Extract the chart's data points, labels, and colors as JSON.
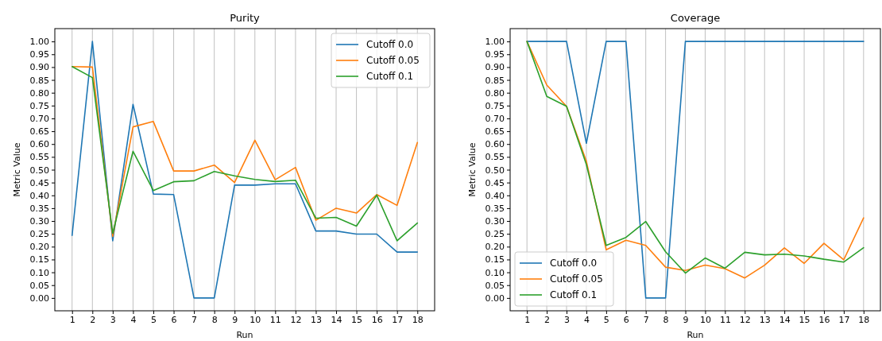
{
  "chart_data": [
    {
      "type": "line",
      "title": "Purity",
      "xlabel": "Run",
      "ylabel": "Metric Value",
      "x": [
        1,
        2,
        3,
        4,
        5,
        6,
        7,
        8,
        9,
        10,
        11,
        12,
        13,
        14,
        15,
        16,
        17,
        18
      ],
      "series": [
        {
          "name": "Cutoff 0.0",
          "color": "#1f77b4",
          "values": [
            0.244,
            1.0,
            0.223,
            0.755,
            0.405,
            0.403,
            0,
            0,
            0.44,
            0.44,
            0.445,
            0.445,
            0.261,
            0.261,
            0.249,
            0.249,
            0.179,
            0.179
          ]
        },
        {
          "name": "Cutoff 0.05",
          "color": "#ff7f0e",
          "values": [
            0.902,
            0.9,
            0.24,
            0.667,
            0.688,
            0.495,
            0.495,
            0.518,
            0.45,
            0.615,
            0.461,
            0.509,
            0.303,
            0.35,
            0.331,
            0.403,
            0.361,
            0.606
          ]
        },
        {
          "name": "Cutoff 0.1",
          "color": "#2ca02c",
          "values": [
            0.902,
            0.859,
            0.252,
            0.572,
            0.419,
            0.453,
            0.457,
            0.493,
            0.476,
            0.462,
            0.454,
            0.459,
            0.311,
            0.314,
            0.28,
            0.401,
            0.223,
            0.292
          ]
        }
      ],
      "xlim": [
        0.15,
        18.85
      ],
      "xticks": [
        1,
        2,
        3,
        4,
        5,
        6,
        7,
        8,
        9,
        10,
        11,
        12,
        13,
        14,
        15,
        16,
        17,
        18
      ],
      "ylim": [
        -0.05,
        1.05
      ],
      "yticks": [
        {
          "value": 0,
          "label": "0.00"
        },
        {
          "value": 0.05,
          "label": "0.05"
        },
        {
          "value": 0.1,
          "label": "0.10"
        },
        {
          "value": 0.15,
          "label": "0.15"
        },
        {
          "value": 0.2,
          "label": "0.20"
        },
        {
          "value": 0.25,
          "label": "0.25"
        },
        {
          "value": 0.3,
          "label": "0.30"
        },
        {
          "value": 0.35,
          "label": "0.35"
        },
        {
          "value": 0.4,
          "label": "0.40"
        },
        {
          "value": 0.45,
          "label": "0.45"
        },
        {
          "value": 0.5,
          "label": "0.50"
        },
        {
          "value": 0.55,
          "label": "0.55"
        },
        {
          "value": 0.6,
          "label": "0.60"
        },
        {
          "value": 0.65,
          "label": "0.65"
        },
        {
          "value": 0.7,
          "label": "0.70"
        },
        {
          "value": 0.75,
          "label": "0.75"
        },
        {
          "value": 0.8,
          "label": "0.80"
        },
        {
          "value": 0.85,
          "label": "0.85"
        },
        {
          "value": 0.9,
          "label": "0.90"
        },
        {
          "value": 0.95,
          "label": "0.95"
        },
        {
          "value": 1,
          "label": "1.00"
        }
      ],
      "grid": "x",
      "legend": "top right"
    },
    {
      "type": "line",
      "title": "Coverage",
      "xlabel": "Run",
      "ylabel": "Metric Value",
      "x": [
        1,
        2,
        3,
        4,
        5,
        6,
        7,
        8,
        9,
        10,
        11,
        12,
        13,
        14,
        15,
        16,
        17,
        18
      ],
      "series": [
        {
          "name": "Cutoff 0.0",
          "color": "#1f77b4",
          "values": [
            1,
            1,
            1,
            0.603,
            1,
            1,
            0,
            0,
            1,
            1,
            1,
            1,
            1,
            1,
            1,
            1,
            1,
            1
          ]
        },
        {
          "name": "Cutoff 0.05",
          "color": "#ff7f0e",
          "values": [
            1,
            0.83,
            0.747,
            0.533,
            0.188,
            0.225,
            0.205,
            0.12,
            0.107,
            0.128,
            0.114,
            0.078,
            0.128,
            0.195,
            0.135,
            0.213,
            0.149,
            0.312
          ]
        },
        {
          "name": "Cutoff 0.1",
          "color": "#2ca02c",
          "values": [
            1,
            0.786,
            0.747,
            0.52,
            0.205,
            0.236,
            0.298,
            0.18,
            0.097,
            0.156,
            0.116,
            0.178,
            0.168,
            0.171,
            0.164,
            0.151,
            0.14,
            0.196
          ]
        }
      ],
      "xlim": [
        0.15,
        18.85
      ],
      "xticks": [
        1,
        2,
        3,
        4,
        5,
        6,
        7,
        8,
        9,
        10,
        11,
        12,
        13,
        14,
        15,
        16,
        17,
        18
      ],
      "ylim": [
        -0.05,
        1.05
      ],
      "yticks": [
        {
          "value": 0,
          "label": "0.00"
        },
        {
          "value": 0.05,
          "label": "0.05"
        },
        {
          "value": 0.1,
          "label": "0.10"
        },
        {
          "value": 0.15,
          "label": "0.15"
        },
        {
          "value": 0.2,
          "label": "0.20"
        },
        {
          "value": 0.25,
          "label": "0.25"
        },
        {
          "value": 0.3,
          "label": "0.30"
        },
        {
          "value": 0.35,
          "label": "0.35"
        },
        {
          "value": 0.4,
          "label": "0.40"
        },
        {
          "value": 0.45,
          "label": "0.45"
        },
        {
          "value": 0.5,
          "label": "0.50"
        },
        {
          "value": 0.55,
          "label": "0.55"
        },
        {
          "value": 0.6,
          "label": "0.60"
        },
        {
          "value": 0.65,
          "label": "0.65"
        },
        {
          "value": 0.7,
          "label": "0.70"
        },
        {
          "value": 0.75,
          "label": "0.75"
        },
        {
          "value": 0.8,
          "label": "0.80"
        },
        {
          "value": 0.85,
          "label": "0.85"
        },
        {
          "value": 0.9,
          "label": "0.90"
        },
        {
          "value": 0.95,
          "label": "0.95"
        },
        {
          "value": 1,
          "label": "1.00"
        }
      ],
      "grid": "x",
      "legend": "bottom left"
    }
  ]
}
